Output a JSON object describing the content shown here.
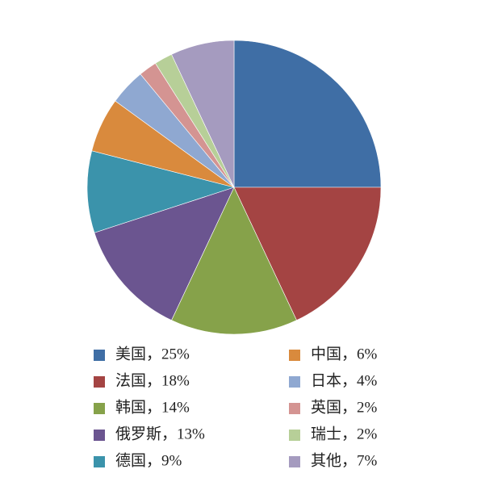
{
  "chart_data": {
    "type": "pie",
    "categories": [
      "美国，25%",
      "法国，18%",
      "韩国，14%",
      "俄罗斯，13%",
      "德国，9%",
      "中国，6%",
      "日本，4%",
      "英国，2%",
      "瑞士，2%",
      "其他，7%"
    ],
    "values": [
      25,
      18,
      14,
      13,
      9,
      6,
      4,
      2,
      2,
      7
    ],
    "colors": [
      "#3f6ea5",
      "#a44443",
      "#86a24a",
      "#6b5590",
      "#3b93ab",
      "#d98a3d",
      "#8fa8d1",
      "#d49492",
      "#b7cf98",
      "#a59bbf"
    ],
    "legend": "bottom"
  }
}
